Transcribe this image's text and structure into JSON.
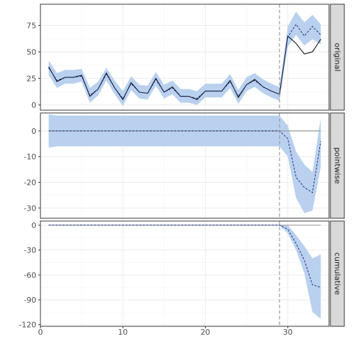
{
  "chart_data": {
    "type": "line",
    "facet_layout": "vertical",
    "x_axis": {
      "range": [
        0,
        35
      ],
      "ticks": [
        0,
        10,
        20,
        30
      ],
      "grid": true
    },
    "intervention_x": 29,
    "colors": {
      "band": "#b9d1ee",
      "actual": "#000000",
      "predicted": "#1f2a7a",
      "zero_line": "#9a9a9a",
      "intervention_line": "#9a9a9a",
      "strip_bg": "#d9d9d9",
      "grid": "#ebebeb"
    },
    "panels": [
      {
        "label": "original",
        "ylim": [
          -5,
          95
        ],
        "yticks": [
          0,
          25,
          50,
          75
        ],
        "x": [
          1,
          2,
          3,
          4,
          5,
          6,
          7,
          8,
          9,
          10,
          11,
          12,
          13,
          14,
          15,
          16,
          17,
          18,
          19,
          20,
          21,
          22,
          23,
          24,
          25,
          26,
          27,
          28,
          29,
          30,
          31,
          32,
          33,
          34
        ],
        "actual": [
          36,
          22,
          26,
          26,
          28,
          8,
          15,
          30,
          16,
          5,
          21,
          12,
          11,
          25,
          12,
          17,
          8,
          8,
          5,
          13,
          13,
          13,
          23,
          7,
          19,
          24,
          17,
          13,
          10,
          65,
          58,
          48,
          50,
          62
        ],
        "predicted": [
          35,
          23,
          26,
          26,
          27,
          9,
          15,
          29,
          16,
          6,
          20,
          12,
          11,
          24,
          12,
          16,
          8,
          8,
          6,
          13,
          13,
          13,
          22,
          8,
          19,
          23,
          17,
          13,
          10,
          64,
          76,
          65,
          74,
          66
        ],
        "lower": [
          28,
          16,
          20,
          20,
          22,
          2,
          9,
          23,
          10,
          -1,
          14,
          6,
          5,
          18,
          6,
          10,
          2,
          2,
          0,
          7,
          7,
          7,
          16,
          1,
          13,
          17,
          11,
          7,
          4,
          55,
          66,
          56,
          62,
          57
        ],
        "upper": [
          42,
          30,
          33,
          33,
          34,
          16,
          22,
          35,
          23,
          13,
          27,
          19,
          18,
          31,
          19,
          23,
          15,
          15,
          13,
          20,
          20,
          20,
          29,
          14,
          26,
          30,
          24,
          20,
          17,
          74,
          88,
          78,
          85,
          76
        ]
      },
      {
        "label": "pointwise",
        "ylim": [
          -34,
          7
        ],
        "yticks": [
          0,
          -10,
          -20,
          -30
        ],
        "zero_line": 0,
        "x": [
          1,
          2,
          3,
          4,
          5,
          6,
          7,
          8,
          9,
          10,
          11,
          12,
          13,
          14,
          15,
          16,
          17,
          18,
          19,
          20,
          21,
          22,
          23,
          24,
          25,
          26,
          27,
          28,
          29,
          30,
          31,
          32,
          33,
          34
        ],
        "predicted": [
          0,
          0,
          0,
          0,
          0,
          0,
          0,
          0,
          0,
          0,
          0,
          0,
          0,
          0,
          0,
          0,
          0,
          0,
          0,
          0,
          0,
          0,
          0,
          0,
          0,
          0,
          0,
          0,
          0,
          -3,
          -18,
          -22,
          -24,
          -4
        ],
        "lower": [
          -6.5,
          -6,
          -6,
          -6,
          -6,
          -6,
          -6,
          -6,
          -6,
          -6,
          -6,
          -6,
          -6,
          -6,
          -6,
          -6,
          -6,
          -6,
          -6,
          -6,
          -6,
          -6,
          -6,
          -6,
          -6,
          -6,
          -6,
          -6,
          -6,
          -10,
          -26,
          -32,
          -31,
          -14
        ],
        "upper": [
          6.5,
          6,
          6,
          6,
          6,
          6,
          6,
          6,
          6,
          6,
          6,
          6,
          6,
          6,
          6,
          6,
          6,
          6,
          6,
          6,
          6,
          6,
          6,
          6,
          6,
          6,
          6,
          6,
          6,
          2,
          -8,
          -13,
          -16,
          5
        ]
      },
      {
        "label": "cumulative",
        "ylim": [
          -122,
          5
        ],
        "yticks": [
          0,
          -30,
          -60,
          -90,
          -120
        ],
        "zero_line": 0,
        "x": [
          1,
          2,
          3,
          4,
          5,
          6,
          7,
          8,
          9,
          10,
          11,
          12,
          13,
          14,
          15,
          16,
          17,
          18,
          19,
          20,
          21,
          22,
          23,
          24,
          25,
          26,
          27,
          28,
          29,
          30,
          31,
          32,
          33,
          34
        ],
        "predicted": [
          0,
          0,
          0,
          0,
          0,
          0,
          0,
          0,
          0,
          0,
          0,
          0,
          0,
          0,
          0,
          0,
          0,
          0,
          0,
          0,
          0,
          0,
          0,
          0,
          0,
          0,
          0,
          0,
          0,
          -5,
          -22,
          -42,
          -72,
          -75
        ],
        "lower": [
          -0.5,
          -0.5,
          -0.5,
          -0.5,
          -0.5,
          -0.5,
          -0.5,
          -0.5,
          -0.5,
          -0.5,
          -0.5,
          -0.5,
          -0.5,
          -0.5,
          -0.5,
          -0.5,
          -0.5,
          -0.5,
          -0.5,
          -0.5,
          -0.5,
          -0.5,
          -0.5,
          -0.5,
          -0.5,
          -0.5,
          -0.5,
          -0.5,
          -0.5,
          -10,
          -30,
          -58,
          -105,
          -113
        ],
        "upper": [
          0.5,
          0.5,
          0.5,
          0.5,
          0.5,
          0.5,
          0.5,
          0.5,
          0.5,
          0.5,
          0.5,
          0.5,
          0.5,
          0.5,
          0.5,
          0.5,
          0.5,
          0.5,
          0.5,
          0.5,
          0.5,
          0.5,
          0.5,
          0.5,
          0.5,
          0.5,
          0.5,
          0.5,
          0.5,
          0,
          -12,
          -25,
          -40,
          -35
        ]
      }
    ]
  }
}
